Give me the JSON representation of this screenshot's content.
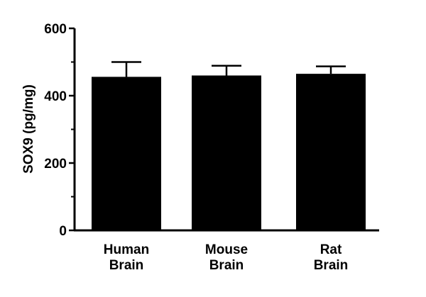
{
  "chart_data": {
    "type": "bar",
    "title": "",
    "xlabel": "",
    "ylabel": "SOX9 (pg/mg)",
    "categories": [
      [
        "Human",
        "Brain"
      ],
      [
        "Mouse",
        "Brain"
      ],
      [
        "Rat",
        "Brain"
      ]
    ],
    "values": [
      456,
      460,
      465
    ],
    "error_upper": [
      44,
      29,
      22
    ],
    "ylim": [
      0,
      600
    ],
    "yticks": [
      0,
      200,
      400,
      600
    ],
    "yminor_ticks": [
      100,
      300,
      500
    ],
    "legend": "none",
    "grid": false,
    "bar_color": "#000000",
    "axis_color": "#000000"
  }
}
